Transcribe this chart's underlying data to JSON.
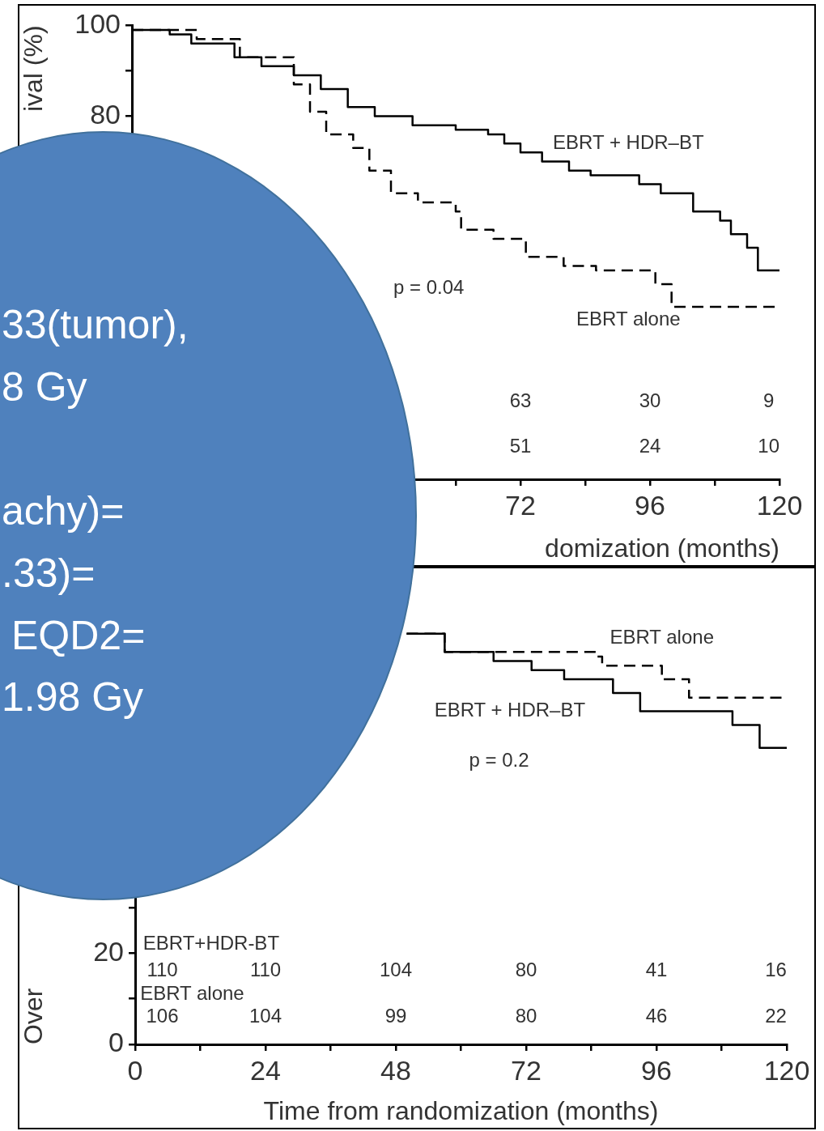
{
  "chart_data": [
    {
      "type": "step",
      "ylabel": "ival (%)",
      "xlabel": "domization (months)",
      "xlim": [
        0,
        120
      ],
      "ylim": [
        0,
        100
      ],
      "xticks": [
        {
          "value": 0,
          "label": null
        },
        {
          "value": 12,
          "label": null
        },
        {
          "value": 24,
          "label": null
        },
        {
          "value": 36,
          "label": null
        },
        {
          "value": 48,
          "label": null
        },
        {
          "value": 60,
          "label": null
        },
        72,
        {
          "value": 84,
          "label": null
        },
        96,
        {
          "value": 108,
          "label": null
        },
        120
      ],
      "yticks": [
        {
          "value": 0,
          "label": null
        },
        {
          "value": 10,
          "label": null
        },
        {
          "value": 20,
          "label": null
        },
        {
          "value": 30,
          "label": null
        },
        {
          "value": 40,
          "label": null
        },
        {
          "value": 50,
          "label": null
        },
        {
          "value": 60,
          "label": null
        },
        {
          "value": 70,
          "label": null
        },
        80,
        {
          "value": 90,
          "label": null
        },
        100
      ],
      "grid": false,
      "legend": false,
      "marker": "none",
      "series": [
        {
          "color": "#000000",
          "line_style": "solid",
          "x": [
            0,
            7,
            11,
            19,
            24,
            30,
            35,
            40,
            45,
            52,
            60,
            66,
            69,
            72,
            76,
            81,
            85,
            94,
            98,
            104,
            109,
            111,
            114,
            116,
            120
          ],
          "values": [
            99,
            98,
            96,
            93,
            91,
            89,
            86,
            82,
            80,
            78,
            77,
            76,
            74,
            72,
            70,
            68,
            67,
            65,
            63,
            59,
            57,
            54,
            51,
            46,
            46
          ]
        },
        {
          "color": "#000000",
          "line_style": "dashed",
          "x": [
            0,
            12,
            20,
            30,
            33,
            36,
            41,
            44,
            48,
            53,
            60,
            61,
            67,
            73,
            80,
            86,
            97,
            100,
            120
          ],
          "values": [
            99,
            97,
            93,
            87,
            81,
            76,
            73,
            68,
            63,
            61,
            59,
            55,
            53,
            49,
            47,
            46,
            43,
            38,
            38
          ]
        }
      ],
      "annotations": [
        "EBRT + HDR–BT",
        "p = 0.04",
        "EBRT alone",
        "63",
        "30",
        "9",
        "51",
        "24",
        "10"
      ]
    },
    {
      "type": "step",
      "ylabel": "Over",
      "xlabel": "Time from randomization (months)",
      "xlim": [
        0,
        120
      ],
      "ylim": [
        0,
        100
      ],
      "xticks": [
        0,
        {
          "value": 12,
          "label": null
        },
        24,
        {
          "value": 36,
          "label": null
        },
        48,
        {
          "value": 60,
          "label": null
        },
        72,
        {
          "value": 84,
          "label": null
        },
        96,
        {
          "value": 108,
          "label": null
        },
        120
      ],
      "yticks": [
        0,
        {
          "value": 10,
          "label": null
        },
        20,
        {
          "value": 30,
          "label": null
        },
        {
          "value": 40,
          "label": null
        },
        {
          "value": 50,
          "label": null
        },
        {
          "value": 60,
          "label": null
        },
        {
          "value": 70,
          "label": null
        },
        {
          "value": 80,
          "label": null
        },
        {
          "value": 90,
          "label": null
        },
        {
          "value": 100,
          "label": null
        }
      ],
      "grid": false,
      "legend": false,
      "marker": "none",
      "series": [
        {
          "color": "#000000",
          "line_style": "solid",
          "x": [
            50,
            57,
            66,
            73,
            79,
            88,
            93,
            110,
            115,
            120
          ],
          "values": [
            90,
            86,
            84,
            82,
            80,
            77,
            73,
            70,
            65,
            65
          ]
        },
        {
          "color": "#000000",
          "line_style": "dashed",
          "x": [
            50,
            57,
            85,
            86,
            97,
            102,
            120
          ],
          "values": [
            90,
            86,
            85,
            83,
            80,
            76,
            76
          ]
        }
      ],
      "annotations": [
        "EBRT alone",
        "EBRT + HDR–BT",
        "p = 0.2",
        "EBRT+HDR-BT",
        "110",
        "110",
        "104",
        "80",
        "41",
        "16",
        "EBRT alone",
        "106",
        "104",
        "99",
        "80",
        "46",
        "22"
      ]
    },
    {
      "type": "other",
      "annotations": [
        "33(tumor),",
        "8 Gy",
        "achy)=",
        ".33)=",
        "EQD2=",
        "1.98 Gy"
      ]
    }
  ]
}
